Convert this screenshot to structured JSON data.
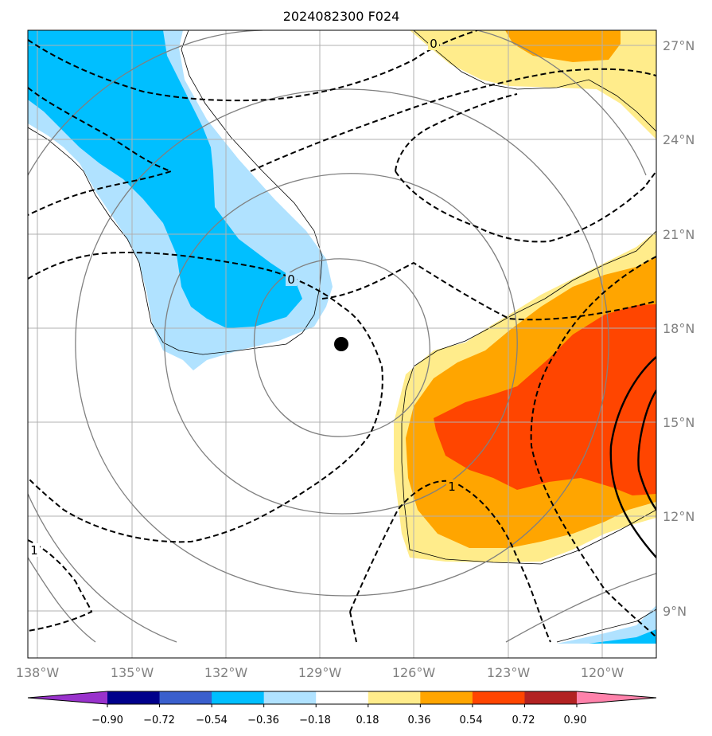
{
  "title": "2024082300 F024",
  "lon_ticks": [
    "138°W",
    "135°W",
    "132°W",
    "129°W",
    "126°W",
    "123°W",
    "120°W"
  ],
  "lat_ticks": [
    "27°N",
    "24°N",
    "21°N",
    "18°N",
    "15°N",
    "12°N",
    "9°N"
  ],
  "contour_labels": [
    "0",
    "0",
    "1",
    "1"
  ],
  "colorbar": {
    "ticks": [
      "−0.90",
      "−0.72",
      "−0.54",
      "−0.36",
      "−0.18",
      "0.18",
      "0.36",
      "0.54",
      "0.72",
      "0.90"
    ],
    "colors": [
      "#9932cc",
      "#00008b",
      "#3a5fcd",
      "#00bfff",
      "#b0e2ff",
      "#ffffff",
      "#ffec8b",
      "#ffa500",
      "#ff4500",
      "#b22222",
      "#ff82ab"
    ]
  },
  "map": {
    "gridline_color": "#b0b0b0",
    "geopotential_contour_color": "#808080",
    "storm_center_marker": "black-dot"
  }
}
